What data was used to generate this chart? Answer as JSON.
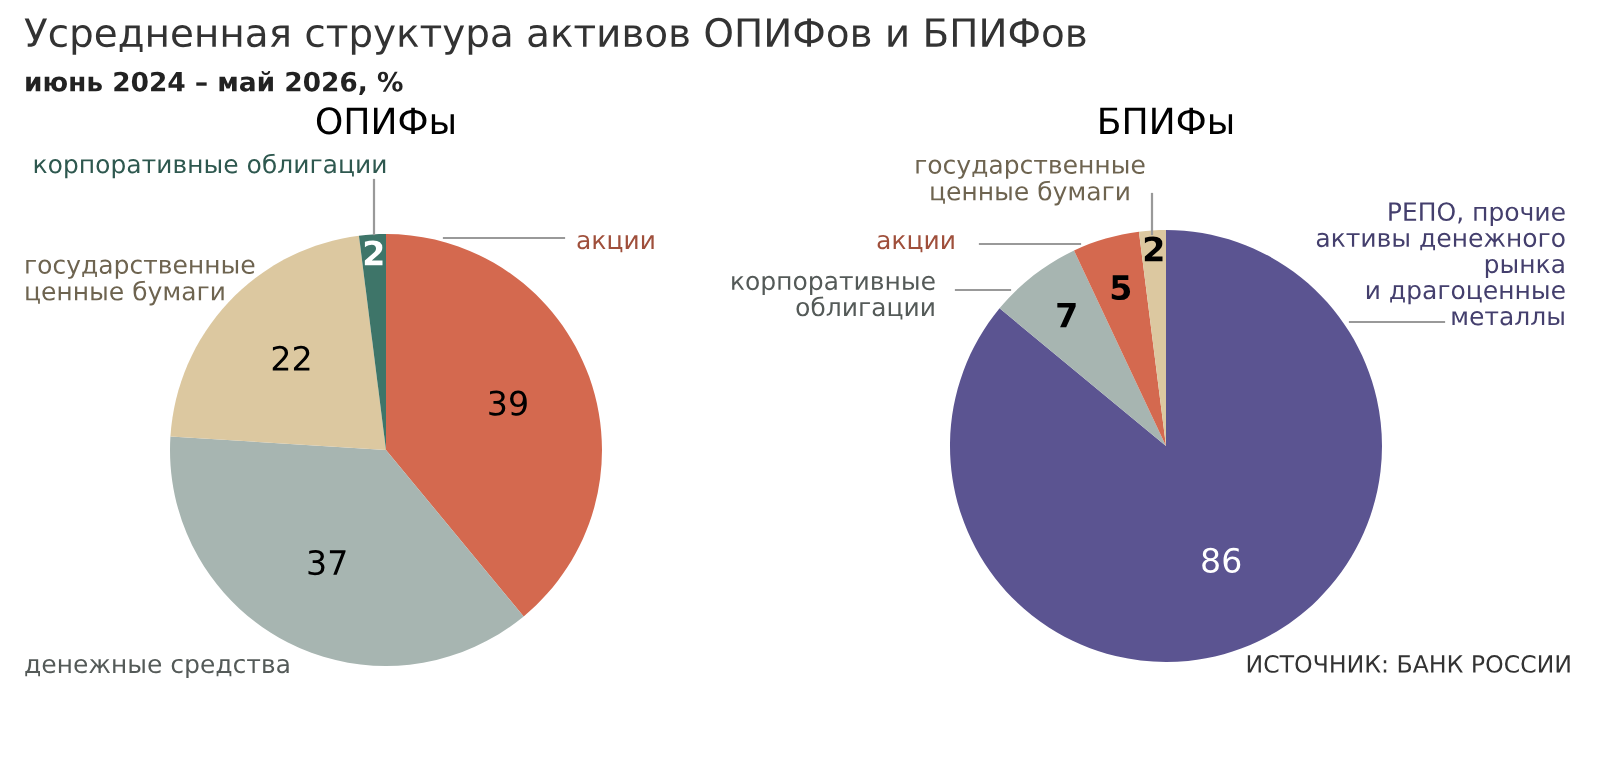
{
  "chart_data": [
    {
      "type": "pie",
      "title": "ОПИФы",
      "annotations": [
        "Усредненная структура активов ОПИФов и БПИФов",
        "июнь 2024 – май 2026, %"
      ],
      "data_labels": true,
      "categories": [
        "акции",
        "денежные средства",
        "государственные\nценные бумаги",
        "корпоративные облигации"
      ],
      "values": [
        39,
        37,
        22,
        2
      ],
      "colors": [
        "#d4694f",
        "#a7b5b1",
        "#dcc8a0",
        "#3e7569"
      ]
    },
    {
      "type": "pie",
      "title": "БПИФы",
      "annotations": [
        "ИСТОЧНИК: БАНК РОССИИ"
      ],
      "data_labels": true,
      "categories": [
        "РЕПО, прочие\nактивы денежного\nрынка\nи драгоценные\nметаллы",
        "корпоративные\nоблигации",
        "акции",
        "государственные\nценные бумаги"
      ],
      "values": [
        86,
        7,
        5,
        2
      ],
      "colors": [
        "#5b5491",
        "#a7b5b1",
        "#d4694f",
        "#dcc8a0"
      ]
    }
  ]
}
